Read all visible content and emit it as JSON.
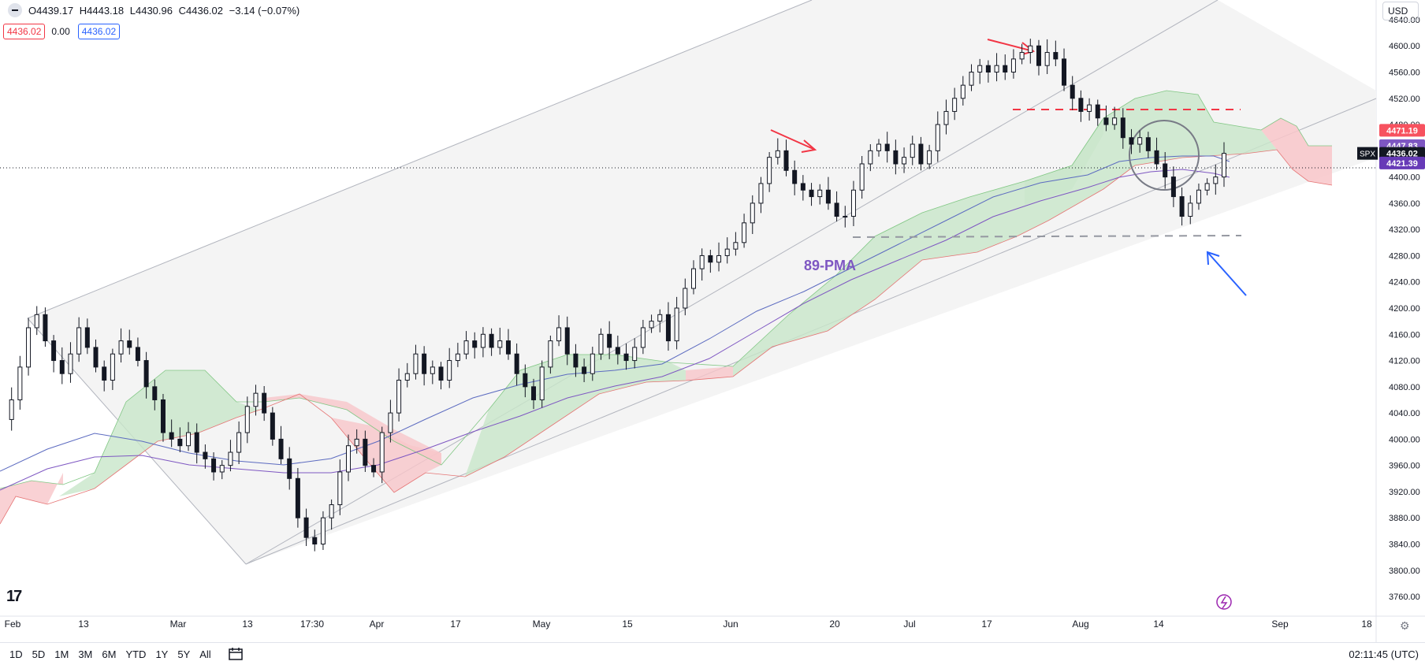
{
  "header": {
    "open": "O4439.17",
    "high": "H4443.18",
    "low": "L4430.96",
    "close": "C4436.02",
    "change": "−3.14 (−0.07%)",
    "ind_left": "4436.02",
    "ind_mid": "0.00",
    "ind_right": "4436.02",
    "currency": "USD"
  },
  "chart_data": {
    "type": "candlestick",
    "symbol": "SPX",
    "ylim": [
      3730,
      4670
    ],
    "y_ticks": [
      3760,
      3800,
      3840,
      3880,
      3920,
      3960,
      4000,
      4040,
      4080,
      4120,
      4160,
      4200,
      4240,
      4280,
      4320,
      4360,
      4400,
      4440,
      4480,
      4520,
      4560,
      4600,
      4640
    ],
    "x_ticks": [
      "Feb",
      "13",
      "Mar",
      "13",
      "17:30",
      "Apr",
      "17",
      "May",
      "15",
      "Jun",
      "20",
      "Jul",
      "17",
      "Aug",
      "14",
      "Sep",
      "18"
    ],
    "price_labels": [
      {
        "text": "4471.19",
        "value": 4471.19,
        "color": "#f7525f"
      },
      {
        "text": "4447.83",
        "value": 4447.83,
        "color": "#7e57c2"
      },
      {
        "text": "4436.02",
        "value": 4436.02,
        "color": "#131722"
      },
      {
        "text": "4421.39",
        "value": 4421.39,
        "color": "#673ab7"
      }
    ],
    "symbol_tag": "SPX",
    "annotation": "89-PMA",
    "current_price": 4436.02,
    "closes": [
      4030,
      4060,
      4110,
      4170,
      4190,
      4150,
      4120,
      4100,
      4130,
      4170,
      4140,
      4110,
      4090,
      4130,
      4150,
      4140,
      4120,
      4080,
      4060,
      4010,
      4000,
      3990,
      4010,
      3980,
      3970,
      3950,
      3960,
      3980,
      4010,
      4050,
      4070,
      4040,
      4000,
      3970,
      3940,
      3880,
      3850,
      3840,
      3880,
      3900,
      3950,
      3990,
      4000,
      3960,
      3950,
      4010,
      4040,
      4090,
      4100,
      4130,
      4100,
      4110,
      4090,
      4120,
      4130,
      4150,
      4140,
      4160,
      4140,
      4150,
      4130,
      4100,
      4080,
      4060,
      4110,
      4150,
      4170,
      4130,
      4110,
      4100,
      4130,
      4160,
      4140,
      4130,
      4120,
      4140,
      4170,
      4180,
      4190,
      4150,
      4200,
      4230,
      4260,
      4280,
      4270,
      4280,
      4290,
      4300,
      4330,
      4360,
      4390,
      4430,
      4440,
      4410,
      4390,
      4380,
      4370,
      4380,
      4360,
      4340,
      4340,
      4380,
      4420,
      4440,
      4450,
      4440,
      4420,
      4430,
      4450,
      4420,
      4440,
      4480,
      4500,
      4520,
      4540,
      4560,
      4570,
      4560,
      4570,
      4560,
      4580,
      4590,
      4600,
      4570,
      4590,
      4580,
      4540,
      4520,
      4500,
      4510,
      4490,
      4480,
      4490,
      4460,
      4450,
      4460,
      4440,
      4420,
      4400,
      4370,
      4340,
      4360,
      4380,
      4390,
      4400,
      4436
    ],
    "series": [
      {
        "name": "Ichimoku Cloud",
        "values": []
      },
      {
        "name": "89-PMA",
        "values": []
      }
    ]
  },
  "footer": {
    "ranges": [
      "1D",
      "5D",
      "1M",
      "3M",
      "6M",
      "YTD",
      "1Y",
      "5Y",
      "All"
    ],
    "clock": "02:11:45 (UTC)"
  },
  "colors": {
    "up": "#ffffff",
    "down": "#131722",
    "cloud_bull": "#c8e6c9",
    "cloud_bear": "#ffcdd2",
    "ma": "#7e57c2",
    "channel": "#b2b5be",
    "arrow_red": "#f23645",
    "arrow_blue": "#2962ff"
  }
}
